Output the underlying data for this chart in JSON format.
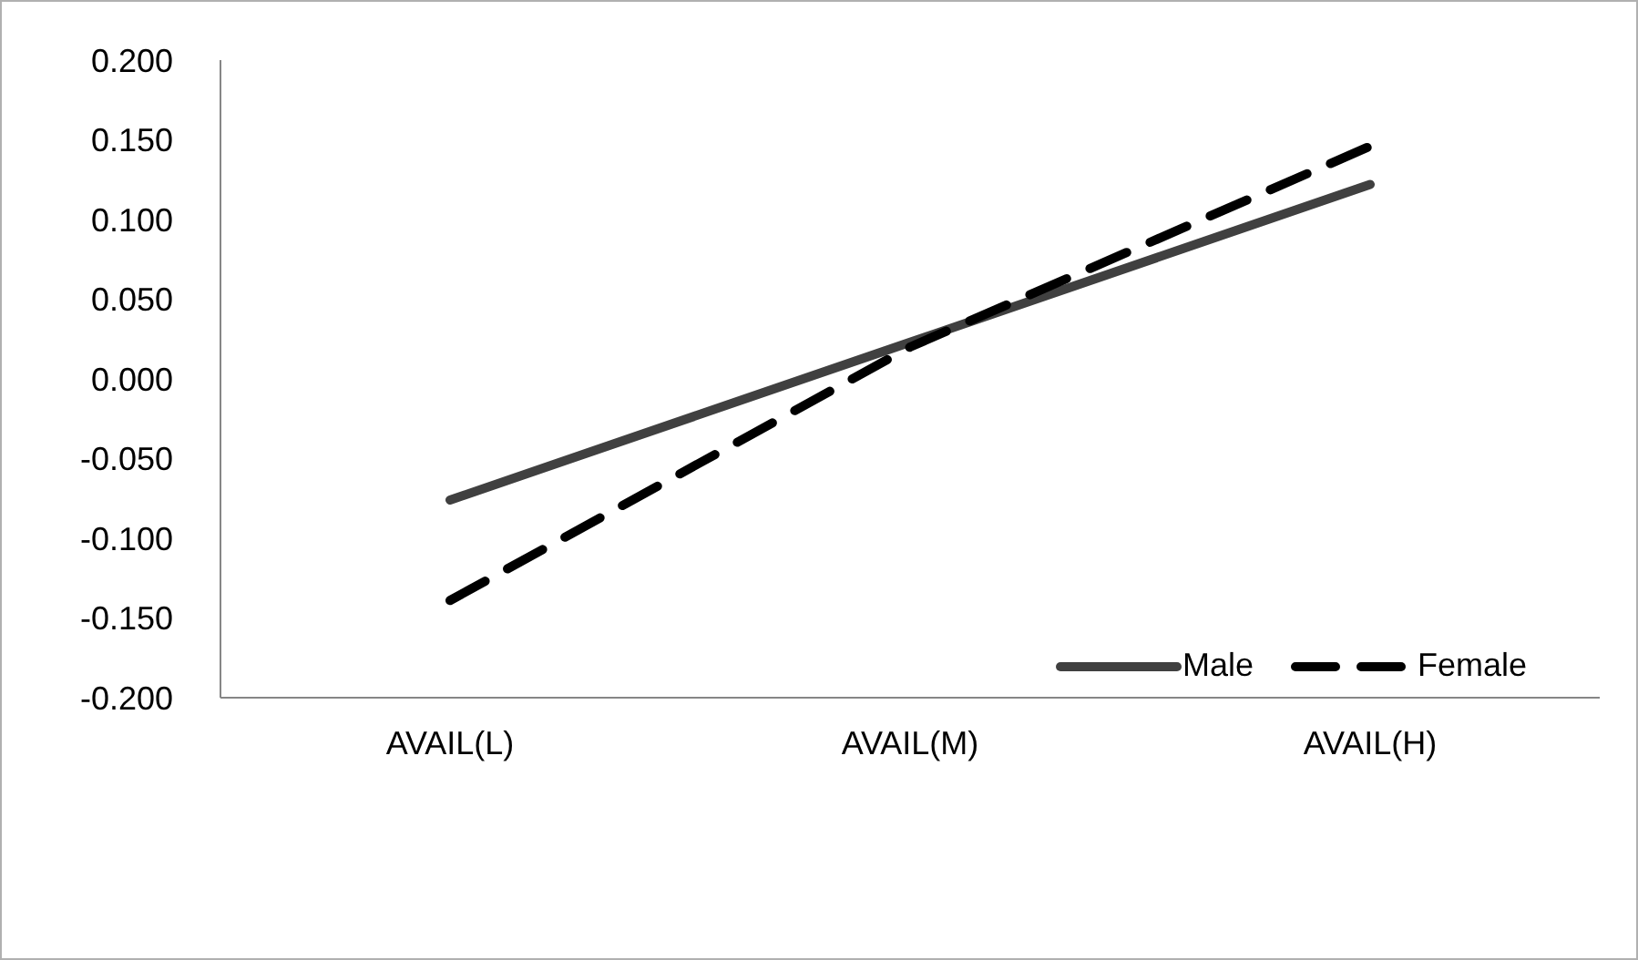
{
  "chart_data": {
    "type": "line",
    "categories": [
      "AVAIL(L)",
      "AVAIL(M)",
      "AVAIL(H)"
    ],
    "series": [
      {
        "name": "Male",
        "color": "#404040",
        "values": [
          -0.076,
          0.023,
          0.122
        ],
        "line_style": "solid"
      },
      {
        "name": "Female",
        "color": "#000000",
        "values": [
          -0.139,
          0.02,
          0.146
        ],
        "line_style": "dashed"
      }
    ],
    "ylim": [
      -0.2,
      0.2
    ],
    "yticks": [
      {
        "value": -0.2,
        "label": "-0.200"
      },
      {
        "value": -0.15,
        "label": "-0.150"
      },
      {
        "value": -0.1,
        "label": "-0.100"
      },
      {
        "value": -0.05,
        "label": "-0.050"
      },
      {
        "value": 0,
        "label": "0.000"
      },
      {
        "value": 0.05,
        "label": "0.050"
      },
      {
        "value": 0.1,
        "label": "0.100"
      },
      {
        "value": 0.15,
        "label": "0.150"
      },
      {
        "value": 0.2,
        "label": "0.200"
      }
    ],
    "grid": false,
    "legend": "bottom right",
    "marker": "none"
  }
}
